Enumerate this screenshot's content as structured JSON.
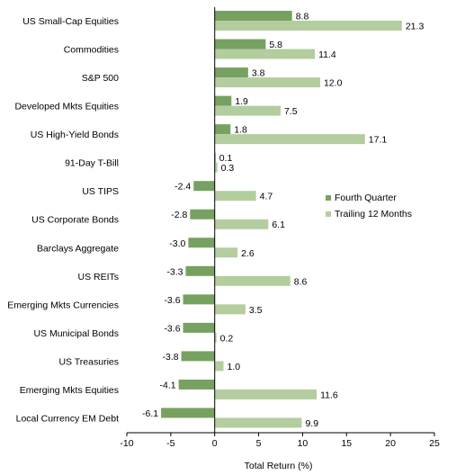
{
  "chart_data": {
    "type": "bar",
    "orientation": "horizontal",
    "categories": [
      "US Small-Cap Equities",
      "Commodities",
      "S&P 500",
      "Developed Mkts Equities",
      "US High-Yield Bonds",
      "91-Day T-Bill",
      "US TIPS",
      "US Corporate Bonds",
      "Barclays Aggregate",
      "US REITs",
      "Emerging Mkts Currencies",
      "US Municipal Bonds",
      "US Treasuries",
      "Emerging Mkts Equities",
      "Local Currency EM Debt"
    ],
    "series": [
      {
        "name": "Fourth Quarter",
        "color": "#77a160",
        "values": [
          8.8,
          5.8,
          3.8,
          1.9,
          1.8,
          0.1,
          -2.4,
          -2.8,
          -3.0,
          -3.3,
          -3.6,
          -3.6,
          -3.8,
          -4.1,
          -6.1
        ],
        "labels": [
          "8.8",
          "5.8",
          "3.8",
          "1.9",
          "1.8",
          "0.1",
          "-2.4",
          "-2.8",
          "-3.0",
          "-3.3",
          "-3.6",
          "-3.6",
          "-3.8",
          "-4.1",
          "-6.1"
        ]
      },
      {
        "name": "Trailing 12 Months",
        "color": "#b4cd9f",
        "values": [
          21.3,
          11.4,
          12.0,
          7.5,
          17.1,
          0.3,
          4.7,
          6.1,
          2.6,
          8.6,
          3.5,
          0.2,
          1.0,
          11.6,
          9.9
        ],
        "labels": [
          "21.3",
          "11.4",
          "12.0",
          "7.5",
          "17.1",
          "0.3",
          "4.7",
          "6.1",
          "2.6",
          "8.6",
          "3.5",
          "0.2",
          "1.0",
          "11.6",
          "9.9"
        ]
      }
    ],
    "xlabel": "Total Return (%)",
    "xlim": [
      -10,
      25
    ],
    "xticks": [
      -10,
      -5,
      0,
      5,
      10,
      15,
      20,
      25
    ],
    "xtick_labels": [
      "-10",
      "-5",
      "0",
      "5",
      "10",
      "15",
      "20",
      "25"
    ],
    "grid": false,
    "legend_position": "right"
  }
}
